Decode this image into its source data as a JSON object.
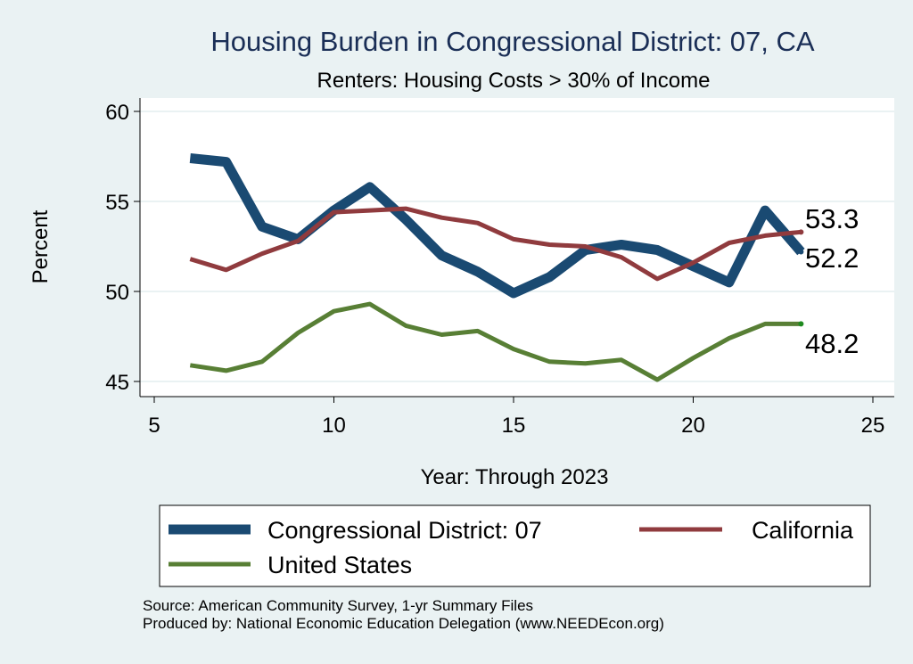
{
  "chart_data": {
    "type": "line",
    "title": "Housing Burden in Congressional District:  07, CA",
    "subtitle": "Renters: Housing Costs > 30% of Income",
    "xlabel": "Year: Through 2023",
    "ylabel": "Percent",
    "xlim": [
      5,
      25
    ],
    "ylim": [
      45,
      60
    ],
    "x_ticks": [
      5,
      10,
      15,
      20,
      25
    ],
    "y_ticks": [
      45,
      50,
      55,
      60
    ],
    "grid": true,
    "legend_position": "bottom",
    "x": [
      6,
      7,
      8,
      9,
      10,
      11,
      12,
      13,
      14,
      15,
      16,
      17,
      18,
      19,
      20,
      21,
      22,
      23
    ],
    "series": [
      {
        "name": "Congressional District:  07",
        "color": "#1a4a72",
        "values": [
          57.4,
          57.2,
          53.6,
          52.9,
          54.5,
          55.8,
          54.0,
          52.0,
          51.1,
          49.9,
          50.8,
          52.3,
          52.6,
          52.3,
          51.4,
          50.5,
          54.5,
          52.2
        ],
        "end_label": "52.2"
      },
      {
        "name": "California",
        "color": "#903b3e",
        "values": [
          51.8,
          51.2,
          52.1,
          52.8,
          54.4,
          54.5,
          54.6,
          54.1,
          53.8,
          52.9,
          52.6,
          52.5,
          51.9,
          50.7,
          51.6,
          52.7,
          53.1,
          53.3
        ],
        "end_label": "53.3"
      },
      {
        "name": "United States",
        "color": "#587f35",
        "values": [
          45.9,
          45.6,
          46.1,
          47.7,
          48.9,
          49.3,
          48.1,
          47.6,
          47.8,
          46.8,
          46.1,
          46.0,
          46.2,
          45.1,
          46.3,
          47.4,
          48.2,
          48.2
        ],
        "end_label": "48.2"
      }
    ]
  },
  "notes": {
    "source": "Source: American Community Survey, 1-yr Summary Files",
    "produced_by": "Produced by: National Economic Education Delegation (www.NEEDEcon.org)"
  }
}
